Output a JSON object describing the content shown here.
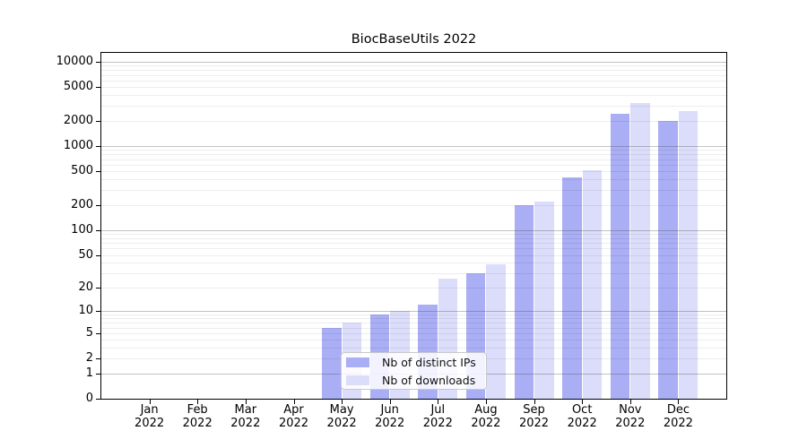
{
  "chart_data": {
    "type": "bar",
    "title": "BiocBaseUtils 2022",
    "categories": [
      "Jan",
      "Feb",
      "Mar",
      "Apr",
      "May",
      "Jun",
      "Jul",
      "Aug",
      "Sep",
      "Oct",
      "Nov",
      "Dec"
    ],
    "x_year": "2022",
    "series": [
      {
        "name": "Nb of distinct IPs",
        "color": "#a9aef5",
        "values": [
          0,
          0,
          0,
          0,
          6,
          9,
          12,
          30,
          200,
          420,
          2430,
          1970
        ]
      },
      {
        "name": "Nb of downloads",
        "color": "#dbddfa",
        "values": [
          0,
          0,
          0,
          0,
          7,
          10,
          26,
          38,
          220,
          515,
          3240,
          2600
        ]
      }
    ],
    "y_axis": {
      "scale": "log10(v+1)",
      "min": 0,
      "max": 10000,
      "tick_labels": [
        "0",
        "1",
        "2",
        "5",
        "10",
        "20",
        "50",
        "100",
        "200",
        "500",
        "1000",
        "2000",
        "5000",
        "10000"
      ],
      "grid": true
    },
    "legend": {
      "position": "bottom-center",
      "entries": [
        "Nb of distinct IPs",
        "Nb of downloads"
      ]
    }
  },
  "colors": {
    "bar_distinct_ips": "#a9aef5",
    "bar_downloads": "#dbddfa",
    "grid_major": "#b2b2b2",
    "grid_minor": "#ececec",
    "axis_frame": "#000000",
    "background": "#ffffff"
  }
}
